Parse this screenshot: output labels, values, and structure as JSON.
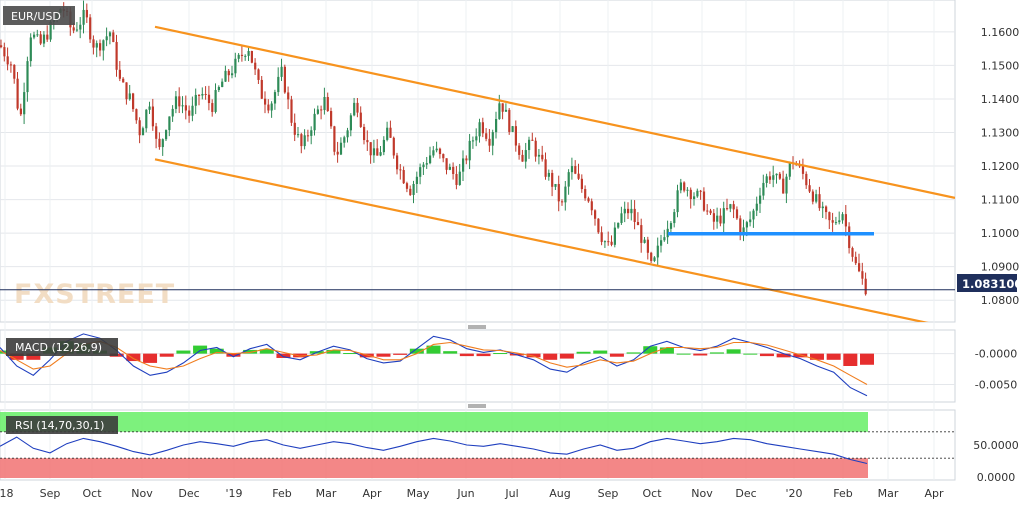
{
  "chart_data": [
    {
      "type": "candlestick",
      "symbol": "EUR/USD",
      "current_price": "1.083100",
      "watermark": "FXSTREET",
      "y_ticks": [
        "1.1600",
        "1.1500",
        "1.1400",
        "1.1300",
        "1.1200",
        "1.1100",
        "1.1000",
        "1.0900",
        "1.0800"
      ],
      "ylim": [
        1.0735,
        1.1695
      ],
      "x_ticks": [
        "'18",
        "Sep",
        "Oct",
        "Nov",
        "Dec",
        "'19",
        "Feb",
        "Mar",
        "Apr",
        "May",
        "Jun",
        "Jul",
        "Aug",
        "Sep",
        "Oct",
        "Nov",
        "Dec",
        "'20",
        "Feb",
        "Mar",
        "Apr"
      ],
      "price_path": [
        [
          0,
          1.156
        ],
        [
          12,
          1.15
        ],
        [
          20,
          1.133
        ],
        [
          30,
          1.16
        ],
        [
          40,
          1.156
        ],
        [
          52,
          1.162
        ],
        [
          62,
          1.168
        ],
        [
          72,
          1.16
        ],
        [
          85,
          1.165
        ],
        [
          95,
          1.155
        ],
        [
          110,
          1.16
        ],
        [
          120,
          1.145
        ],
        [
          130,
          1.14
        ],
        [
          140,
          1.13
        ],
        [
          150,
          1.14
        ],
        [
          158,
          1.123
        ],
        [
          168,
          1.135
        ],
        [
          178,
          1.14
        ],
        [
          190,
          1.135
        ],
        [
          200,
          1.142
        ],
        [
          212,
          1.138
        ],
        [
          222,
          1.145
        ],
        [
          235,
          1.15
        ],
        [
          248,
          1.156
        ],
        [
          260,
          1.142
        ],
        [
          270,
          1.138
        ],
        [
          282,
          1.148
        ],
        [
          292,
          1.133
        ],
        [
          302,
          1.125
        ],
        [
          312,
          1.133
        ],
        [
          324,
          1.14
        ],
        [
          336,
          1.123
        ],
        [
          346,
          1.13
        ],
        [
          356,
          1.14
        ],
        [
          366,
          1.127
        ],
        [
          376,
          1.122
        ],
        [
          388,
          1.13
        ],
        [
          398,
          1.12
        ],
        [
          410,
          1.113
        ],
        [
          422,
          1.12
        ],
        [
          434,
          1.125
        ],
        [
          446,
          1.12
        ],
        [
          458,
          1.116
        ],
        [
          470,
          1.126
        ],
        [
          480,
          1.133
        ],
        [
          490,
          1.128
        ],
        [
          500,
          1.14
        ],
        [
          512,
          1.13
        ],
        [
          522,
          1.123
        ],
        [
          532,
          1.127
        ],
        [
          542,
          1.12
        ],
        [
          552,
          1.115
        ],
        [
          562,
          1.108
        ],
        [
          570,
          1.12
        ],
        [
          580,
          1.114
        ],
        [
          590,
          1.11
        ],
        [
          600,
          1.1
        ],
        [
          610,
          1.095
        ],
        [
          620,
          1.105
        ],
        [
          630,
          1.107
        ],
        [
          640,
          1.1
        ],
        [
          652,
          1.089
        ],
        [
          662,
          1.099
        ],
        [
          672,
          1.106
        ],
        [
          682,
          1.115
        ],
        [
          692,
          1.112
        ],
        [
          702,
          1.11
        ],
        [
          712,
          1.103
        ],
        [
          722,
          1.105
        ],
        [
          732,
          1.108
        ],
        [
          742,
          1.1
        ],
        [
          752,
          1.105
        ],
        [
          762,
          1.115
        ],
        [
          772,
          1.118
        ],
        [
          782,
          1.113
        ],
        [
          792,
          1.122
        ],
        [
          802,
          1.118
        ],
        [
          812,
          1.112
        ],
        [
          822,
          1.106
        ],
        [
          832,
          1.102
        ],
        [
          842,
          1.107
        ],
        [
          848,
          1.099
        ],
        [
          856,
          1.09
        ],
        [
          862,
          1.086
        ],
        [
          867,
          1.0831
        ]
      ],
      "channel_upper": [
        [
          1.1615,
          155
        ],
        [
          1.1105,
          955
        ]
      ],
      "channel_lower": [
        [
          1.122,
          155
        ],
        [
          1.0715,
          955
        ]
      ],
      "support_level": 1.0998,
      "colors": {
        "up": "#2e8b57",
        "down": "#c0392b",
        "channel": "#f7931e",
        "support": "#1e90ff",
        "price_line": "#1f2f5c"
      }
    },
    {
      "type": "line",
      "title": "MACD (12,26,9)",
      "y_ticks": [
        "-0.0000",
        "-0.0050"
      ],
      "ylim": [
        -0.0075,
        0.0035
      ],
      "series": [
        {
          "values": [
            0.001,
            -0.002,
            -0.0035,
            -0.001,
            0.002,
            0.0032,
            0.0025,
            0.0005,
            -0.002,
            -0.0035,
            -0.003,
            -0.0015,
            0.0005,
            0.001,
            -0.0005,
            0.0008,
            0.0015,
            -0.0005,
            -0.001,
            0.0002,
            0.0012,
            0.0006,
            -0.0008,
            -0.0015,
            -0.0012,
            0.0008,
            0.0028,
            0.0022,
            0.0008,
            0.0002,
            0.0006,
            -0.0002,
            -0.001,
            -0.0025,
            -0.003,
            -0.0015,
            -0.0005,
            -0.002,
            -0.001,
            0.0012,
            0.002,
            0.001,
            0.0005,
            0.0012,
            0.0025,
            0.0018,
            0.001,
            0.0,
            -0.0008,
            -0.002,
            -0.003,
            -0.0055,
            -0.0068
          ]
        },
        {
          "values": [
            0.0005,
            -0.001,
            -0.0025,
            -0.002,
            0.0,
            0.0015,
            0.002,
            0.001,
            -0.0008,
            -0.002,
            -0.0025,
            -0.002,
            -0.0008,
            0.0002,
            0.0,
            0.0002,
            0.0008,
            0.0002,
            -0.0004,
            -0.0002,
            0.0006,
            0.0005,
            -0.0002,
            -0.001,
            -0.001,
            0.0,
            0.0015,
            0.0018,
            0.0012,
            0.0006,
            0.0005,
            0.0001,
            -0.0004,
            -0.0015,
            -0.0022,
            -0.0018,
            -0.001,
            -0.0015,
            -0.0012,
            0.0,
            0.001,
            0.001,
            0.0008,
            0.001,
            0.0018,
            0.0018,
            0.0014,
            0.0006,
            -0.0002,
            -0.001,
            -0.002,
            -0.0035,
            -0.005
          ]
        }
      ],
      "histogram": [
        0.0005,
        -0.001,
        -0.001,
        0.001,
        0.002,
        0.0017,
        0.0005,
        -0.0005,
        -0.0012,
        -0.0015,
        -0.0005,
        0.0005,
        0.0013,
        0.0008,
        -0.0005,
        0.0006,
        0.0007,
        -0.0007,
        -0.0006,
        0.0004,
        0.0006,
        0.0001,
        -0.0006,
        -0.0005,
        -0.0002,
        0.0008,
        0.0013,
        0.0004,
        -0.0004,
        -0.0004,
        0.0001,
        -0.0003,
        -0.0006,
        -0.001,
        -0.0008,
        0.0003,
        0.0005,
        -0.0005,
        0.0002,
        0.0012,
        0.001,
        0.0,
        -0.0003,
        0.0002,
        0.0007,
        0.0,
        -0.0004,
        -0.0006,
        -0.0006,
        -0.001,
        -0.001,
        -0.002,
        -0.0018
      ]
    },
    {
      "type": "line",
      "title": "RSI (14,70,30,1)",
      "y_ticks": [
        "50.0000",
        "0.0000"
      ],
      "ylim": [
        0,
        100
      ],
      "overbought": 70,
      "oversold": 30,
      "values": [
        48,
        62,
        45,
        38,
        52,
        60,
        55,
        48,
        40,
        35,
        42,
        50,
        55,
        52,
        48,
        55,
        58,
        50,
        45,
        50,
        55,
        52,
        46,
        42,
        48,
        55,
        60,
        56,
        50,
        48,
        52,
        48,
        44,
        38,
        36,
        44,
        50,
        42,
        45,
        55,
        60,
        56,
        52,
        55,
        60,
        58,
        52,
        48,
        44,
        40,
        36,
        28,
        22
      ]
    }
  ]
}
